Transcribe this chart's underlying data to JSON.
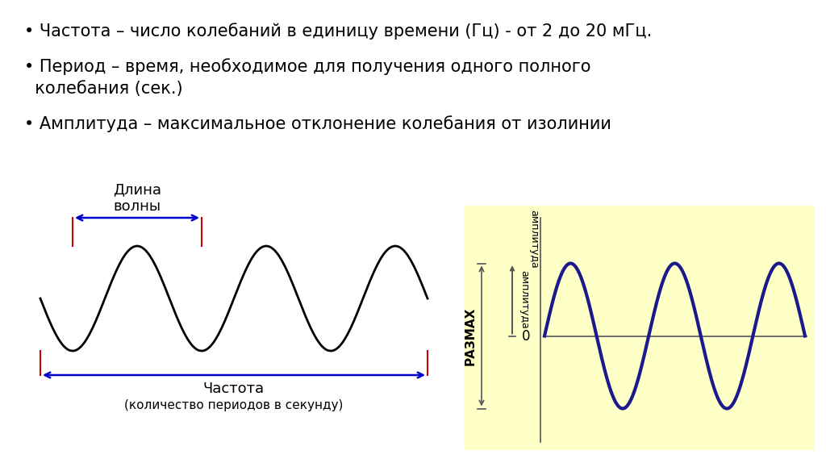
{
  "background_color": "#ffffff",
  "bullet1": "• Частота – число колебаний в единицу времени (Гц) - от 2 до 20 мГц.",
  "bullet2a": "• Период – время, необходимое для получения одного полного",
  "bullet2b": "  колебания (сек.)",
  "bullet3": "• Амплитуда – максимальное отклонение колебания от изолинии",
  "left_wave_color": "#000000",
  "right_wave_color": "#1a1a8c",
  "arrow_red": "#cc0000",
  "arrow_blue": "#0000cc",
  "yellow_bg": "#ffffc8",
  "text_color": "#000000",
  "gray_line": "#555555",
  "label_dlina_volny": "Длина\nволны",
  "label_chastota": "Частота",
  "label_chastota_sub": "(количество периодов в секунду)",
  "label_razmah": "РАЗМАХ",
  "label_amplituda": "амплитуда",
  "label_zero": "0"
}
